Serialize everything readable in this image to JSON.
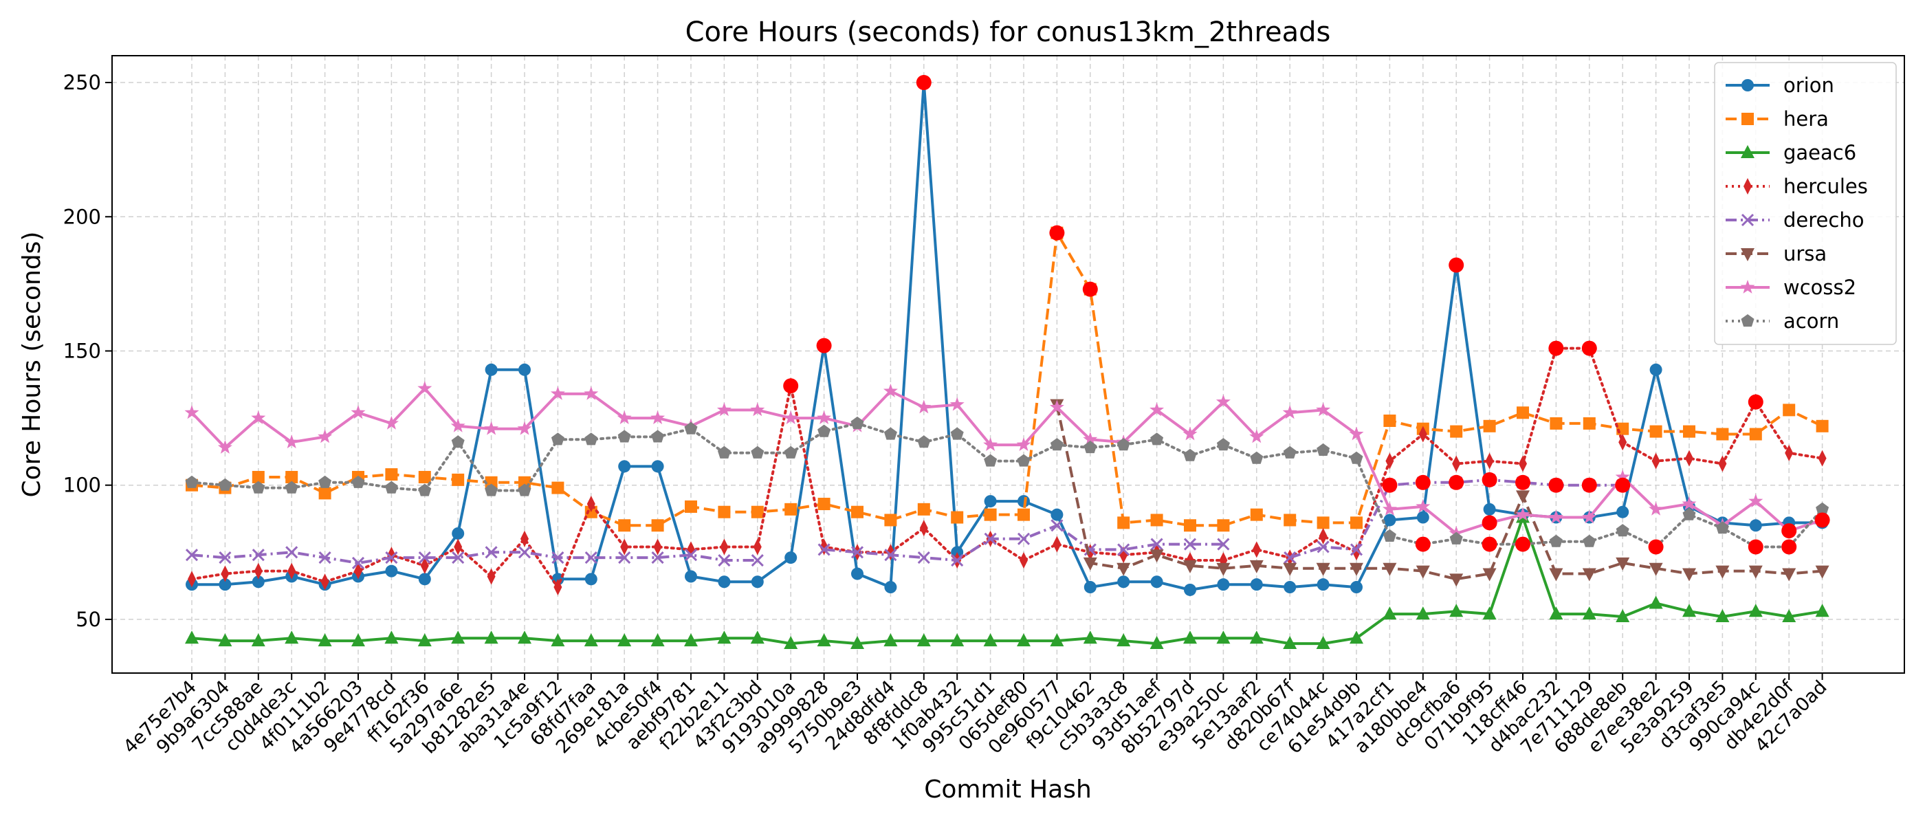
{
  "chart_data": {
    "type": "line",
    "title": "Core Hours (seconds) for conus13km_2threads",
    "xlabel": "Commit Hash",
    "ylabel": "Core Hours (seconds)",
    "ylim": [
      30,
      260
    ],
    "yticks": [
      50,
      100,
      150,
      200,
      250
    ],
    "grid": true,
    "legend_position": "upper-right",
    "categories": [
      "4e75e7b4",
      "9b9a6304",
      "7cc588ae",
      "c0d4de3c",
      "4f0111b2",
      "4a566203",
      "9e4778cd",
      "ff162f36",
      "5a297a6e",
      "b81282e5",
      "aba31a4e",
      "1c5a9f12",
      "68fd7faa",
      "269e181a",
      "4cbe50f4",
      "aebf9781",
      "f22b2e11",
      "43f2c3bd",
      "9193010a",
      "a9999828",
      "5750b9e3",
      "24d8dfd4",
      "8f8fddc8",
      "1f0ab432",
      "995c51d1",
      "065def80",
      "0e960577",
      "f9c10462",
      "c5b3a3c8",
      "93d51aef",
      "8b52797d",
      "e39a250c",
      "5e13aaf2",
      "d820b67f",
      "ce74044c",
      "61e54d9b",
      "417a2cf1",
      "a180bbe4",
      "dc9cfba6",
      "071b9f95",
      "118cff46",
      "d4bac232",
      "7e711129",
      "688de8eb",
      "e7ee38e2",
      "5e3a9259",
      "d3caf3e5",
      "990ca94c",
      "db4e2d0f",
      "42c7a0ad"
    ],
    "series": [
      {
        "name": "orion",
        "color": "#1f77b4",
        "marker": "circle",
        "dash": "solid",
        "values": [
          63,
          63,
          64,
          66,
          63,
          66,
          68,
          65,
          82,
          143,
          143,
          65,
          65,
          107,
          107,
          66,
          64,
          64,
          73,
          152,
          67,
          62,
          250,
          75,
          94,
          94,
          89,
          62,
          64,
          64,
          61,
          63,
          63,
          62,
          63,
          62,
          87,
          88,
          182,
          91,
          89,
          88,
          88,
          90,
          143,
          92,
          86,
          85,
          86,
          86
        ],
        "highlight": [
          false,
          false,
          false,
          false,
          false,
          false,
          false,
          false,
          false,
          false,
          false,
          false,
          false,
          false,
          false,
          false,
          false,
          false,
          false,
          true,
          false,
          false,
          true,
          false,
          false,
          false,
          false,
          false,
          false,
          false,
          false,
          false,
          false,
          false,
          false,
          false,
          false,
          false,
          true,
          false,
          false,
          false,
          false,
          false,
          false,
          false,
          false,
          false,
          false,
          false
        ]
      },
      {
        "name": "hera",
        "color": "#ff7f0e",
        "marker": "square",
        "dash": "dashed",
        "values": [
          100,
          99,
          103,
          103,
          97,
          103,
          104,
          103,
          102,
          101,
          101,
          99,
          90,
          85,
          85,
          92,
          90,
          90,
          91,
          93,
          90,
          87,
          91,
          88,
          89,
          89,
          194,
          173,
          86,
          87,
          85,
          85,
          89,
          87,
          86,
          86,
          124,
          121,
          120,
          122,
          127,
          123,
          123,
          121,
          120,
          120,
          119,
          119,
          128,
          122
        ],
        "highlight": [
          false,
          false,
          false,
          false,
          false,
          false,
          false,
          false,
          false,
          false,
          false,
          false,
          false,
          false,
          false,
          false,
          false,
          false,
          false,
          false,
          false,
          false,
          false,
          false,
          false,
          false,
          true,
          true,
          false,
          false,
          false,
          false,
          false,
          false,
          false,
          false,
          false,
          false,
          false,
          false,
          false,
          false,
          false,
          false,
          false,
          false,
          false,
          false,
          false,
          false
        ]
      },
      {
        "name": "gaeac6",
        "color": "#2ca02c",
        "marker": "triangle-up",
        "dash": "solid",
        "values": [
          43,
          42,
          42,
          43,
          42,
          42,
          43,
          42,
          43,
          43,
          43,
          42,
          42,
          42,
          42,
          42,
          43,
          43,
          41,
          42,
          41,
          42,
          42,
          42,
          42,
          42,
          42,
          43,
          42,
          41,
          43,
          43,
          43,
          41,
          41,
          43,
          52,
          52,
          53,
          52,
          88,
          52,
          52,
          51,
          56,
          53,
          51,
          53,
          51,
          53
        ],
        "highlight": [
          false,
          false,
          false,
          false,
          false,
          false,
          false,
          false,
          false,
          false,
          false,
          false,
          false,
          false,
          false,
          false,
          false,
          false,
          false,
          false,
          false,
          false,
          false,
          false,
          false,
          false,
          false,
          false,
          false,
          false,
          false,
          false,
          false,
          false,
          false,
          false,
          false,
          false,
          false,
          false,
          false,
          false,
          false,
          false,
          false,
          false,
          false,
          false,
          false,
          false
        ]
      },
      {
        "name": "hercules",
        "color": "#d62728",
        "marker": "thin-diamond",
        "dash": "dotted",
        "values": [
          65,
          67,
          68,
          68,
          64,
          68,
          74,
          70,
          77,
          66,
          80,
          62,
          93,
          77,
          77,
          76,
          77,
          77,
          137,
          77,
          75,
          75,
          84,
          72,
          80,
          72,
          78,
          75,
          74,
          75,
          72,
          72,
          76,
          73,
          81,
          75,
          109,
          119,
          108,
          109,
          108,
          151,
          151,
          116,
          109,
          110,
          108,
          131,
          112,
          110
        ],
        "highlight": [
          false,
          false,
          false,
          false,
          false,
          false,
          false,
          false,
          false,
          false,
          false,
          false,
          false,
          false,
          false,
          false,
          false,
          false,
          true,
          false,
          false,
          false,
          false,
          false,
          false,
          false,
          false,
          false,
          false,
          false,
          false,
          false,
          false,
          false,
          false,
          false,
          false,
          false,
          false,
          false,
          false,
          true,
          true,
          false,
          false,
          false,
          false,
          true,
          false,
          false
        ]
      },
      {
        "name": "derecho",
        "color": "#9467bd",
        "marker": "x",
        "dash": "dashdot",
        "values": [
          74,
          73,
          74,
          75,
          73,
          71,
          73,
          73,
          73,
          75,
          75,
          73,
          73,
          73,
          73,
          74,
          72,
          72,
          null,
          76,
          75,
          74,
          73,
          72,
          80,
          80,
          85,
          76,
          76,
          78,
          78,
          78,
          null,
          73,
          77,
          76,
          100,
          101,
          101,
          102,
          101,
          100,
          100,
          100,
          null,
          null,
          null,
          null,
          null,
          null
        ],
        "highlight": [
          false,
          false,
          false,
          false,
          false,
          false,
          false,
          false,
          false,
          false,
          false,
          false,
          false,
          false,
          false,
          false,
          false,
          false,
          false,
          false,
          false,
          false,
          false,
          false,
          false,
          false,
          false,
          false,
          false,
          false,
          false,
          false,
          false,
          false,
          false,
          false,
          true,
          true,
          true,
          true,
          true,
          true,
          true,
          true,
          false,
          false,
          false,
          false,
          false,
          false
        ]
      },
      {
        "name": "ursa",
        "color": "#8c564b",
        "marker": "triangle-down",
        "dash": "dashed",
        "values": [
          null,
          null,
          null,
          null,
          null,
          null,
          null,
          null,
          null,
          null,
          null,
          null,
          null,
          null,
          null,
          null,
          null,
          null,
          null,
          null,
          null,
          null,
          null,
          null,
          null,
          null,
          130,
          71,
          69,
          74,
          70,
          69,
          70,
          69,
          69,
          69,
          69,
          68,
          65,
          67,
          96,
          67,
          67,
          71,
          69,
          67,
          68,
          68,
          67,
          68
        ],
        "highlight": [
          false,
          false,
          false,
          false,
          false,
          false,
          false,
          false,
          false,
          false,
          false,
          false,
          false,
          false,
          false,
          false,
          false,
          false,
          false,
          false,
          false,
          false,
          false,
          false,
          false,
          false,
          false,
          false,
          false,
          false,
          false,
          false,
          false,
          false,
          false,
          false,
          false,
          false,
          false,
          false,
          false,
          false,
          false,
          false,
          false,
          false,
          false,
          false,
          false,
          false
        ]
      },
      {
        "name": "wcoss2",
        "color": "#e377c2",
        "marker": "star",
        "dash": "solid",
        "values": [
          127,
          114,
          125,
          116,
          118,
          127,
          123,
          136,
          122,
          121,
          121,
          134,
          134,
          125,
          125,
          122,
          128,
          128,
          125,
          125,
          122,
          135,
          129,
          130,
          115,
          115,
          129,
          117,
          116,
          128,
          119,
          131,
          118,
          127,
          128,
          119,
          91,
          92,
          82,
          86,
          89,
          88,
          88,
          103,
          91,
          93,
          85,
          94,
          83,
          87
        ],
        "highlight": [
          false,
          false,
          false,
          false,
          false,
          false,
          false,
          false,
          false,
          false,
          false,
          false,
          false,
          false,
          false,
          false,
          false,
          false,
          false,
          false,
          false,
          false,
          false,
          false,
          false,
          false,
          false,
          false,
          false,
          false,
          false,
          false,
          false,
          false,
          false,
          false,
          false,
          false,
          false,
          true,
          false,
          false,
          false,
          false,
          false,
          false,
          false,
          false,
          true,
          true
        ]
      },
      {
        "name": "acorn",
        "color": "#7f7f7f",
        "marker": "pentagon",
        "dash": "dotted",
        "values": [
          101,
          100,
          99,
          99,
          101,
          101,
          99,
          98,
          116,
          98,
          98,
          117,
          117,
          118,
          118,
          121,
          112,
          112,
          112,
          120,
          123,
          119,
          116,
          119,
          109,
          109,
          115,
          114,
          115,
          117,
          111,
          115,
          110,
          112,
          113,
          110,
          81,
          78,
          80,
          78,
          78,
          79,
          79,
          83,
          77,
          89,
          84,
          77,
          77,
          91
        ],
        "highlight": [
          false,
          false,
          false,
          false,
          false,
          false,
          false,
          false,
          false,
          false,
          false,
          false,
          false,
          false,
          false,
          false,
          false,
          false,
          false,
          false,
          false,
          false,
          false,
          false,
          false,
          false,
          false,
          false,
          false,
          false,
          false,
          false,
          false,
          false,
          false,
          false,
          false,
          true,
          false,
          true,
          true,
          false,
          false,
          false,
          true,
          false,
          false,
          true,
          true,
          false
        ]
      }
    ]
  }
}
